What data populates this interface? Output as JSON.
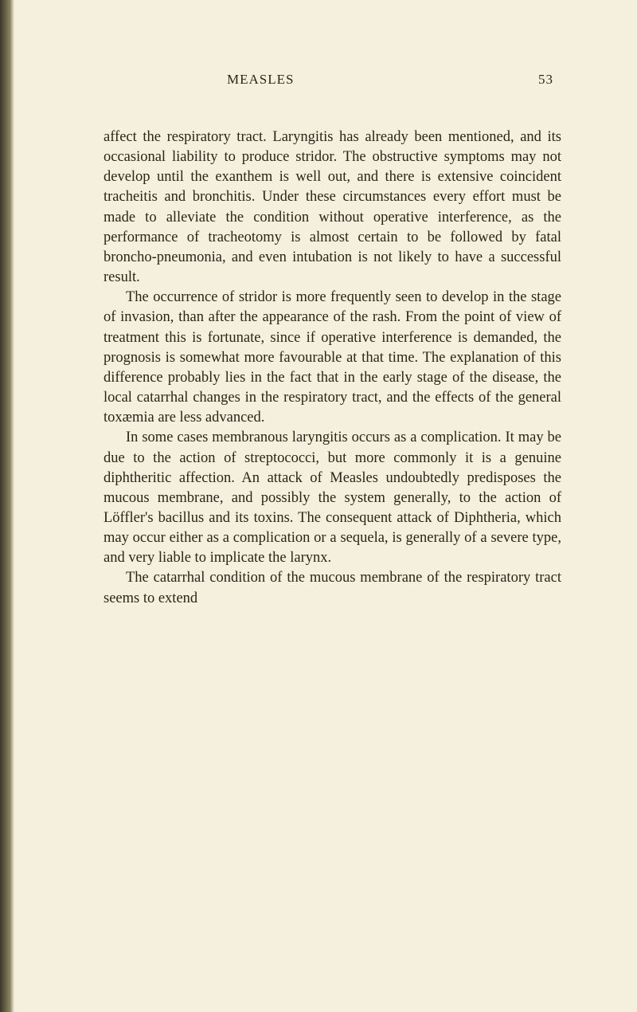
{
  "header": {
    "title": "MEASLES",
    "pageNumber": "53"
  },
  "paragraphs": [
    "affect the respiratory tract. Laryngitis has already been mentioned, and its occasional liability to produce stridor. The obstructive symptoms may not develop until the exanthem is well out, and there is extensive coincident tracheitis and bronchitis. Under these circumstances every effort must be made to alleviate the condition without operative interference, as the performance of tracheotomy is almost certain to be followed by fatal broncho-pneumonia, and even intubation is not likely to have a successful result.",
    "The occurrence of stridor is more frequently seen to develop in the stage of invasion, than after the appearance of the rash. From the point of view of treatment this is fortunate, since if operative interference is demanded, the prognosis is somewhat more favourable at that time. The explanation of this difference probably lies in the fact that in the early stage of the disease, the local catarrhal changes in the respiratory tract, and the effects of the general toxæmia are less advanced.",
    "In some cases membranous laryngitis occurs as a complication. It may be due to the action of streptococci, but more commonly it is a genuine diphtheritic affection. An attack of Measles undoubtedly predisposes the mucous membrane, and possibly the system generally, to the action of Löffler's bacillus and its toxins. The consequent attack of Diphtheria, which may occur either as a complication or a sequela, is generally of a severe type, and very liable to implicate the larynx.",
    "The catarrhal condition of the mucous membrane of the respiratory tract seems to extend"
  ],
  "styling": {
    "backgroundColor": "#f5f0de",
    "textColor": "#2a2518",
    "bodyFontSize": 18.5,
    "headerFontSize": 17,
    "lineHeight": 1.36,
    "fontFamily": "Georgia, serif",
    "pageWidth": 800,
    "pageHeight": 1270,
    "textIndent": 28,
    "bindingColors": [
      "#3a3528",
      "#6b6348",
      "#8a8460",
      "#f5f0de"
    ]
  }
}
